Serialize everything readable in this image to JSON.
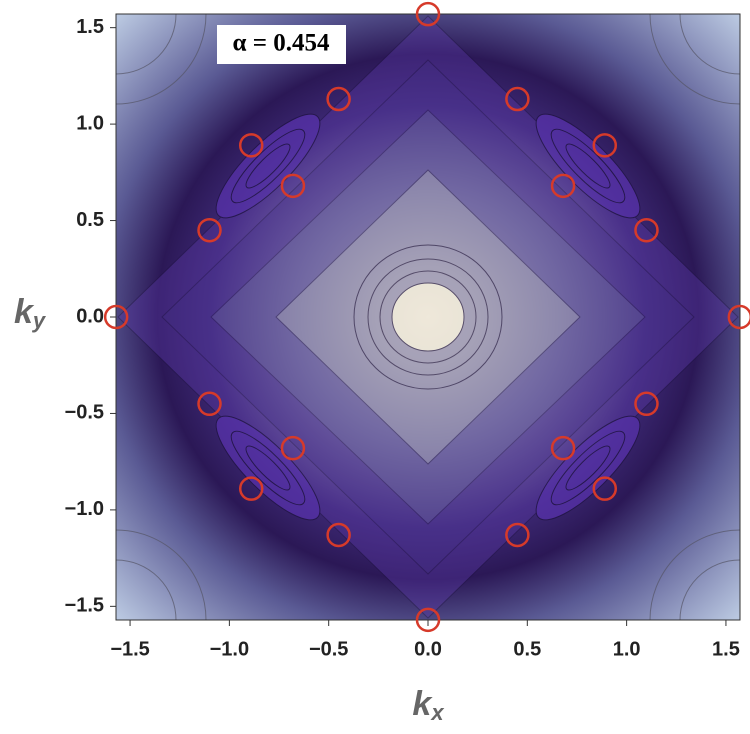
{
  "chart_data": {
    "type": "scatter",
    "annotation": "α = 0.454",
    "xlabel": "k",
    "xlabel_subscript": "x",
    "ylabel": "k",
    "ylabel_subscript": "y",
    "x": [
      0,
      -1.57,
      1.57,
      0,
      -0.45,
      0.45,
      -0.89,
      0.89,
      -0.68,
      0.68,
      -1.1,
      1.1,
      -0.45,
      0.45,
      -0.89,
      0.89,
      -0.68,
      0.68,
      -1.1,
      1.1
    ],
    "values": [
      1.57,
      0,
      0,
      -1.57,
      1.13,
      1.13,
      0.89,
      0.89,
      0.68,
      0.68,
      0.45,
      0.45,
      -1.13,
      -1.13,
      -0.89,
      -0.89,
      -0.68,
      -0.68,
      -0.45,
      -0.45
    ],
    "color": "#d63a2a",
    "xlim": [
      -1.5708,
      1.5708
    ],
    "ylim": [
      -1.5708,
      1.5708
    ],
    "xticks": [
      {
        "value": -1.5,
        "label": "−1.5"
      },
      {
        "value": -1.0,
        "label": "−1.0"
      },
      {
        "value": -0.5,
        "label": "−0.5"
      },
      {
        "value": 0,
        "label": "0.0"
      },
      0.5,
      {
        "value": 1.0,
        "label": "1.0"
      },
      1.5
    ],
    "yticks": [
      {
        "value": -1.5,
        "label": "−1.5"
      },
      {
        "value": -1.0,
        "label": "−1.0"
      },
      {
        "value": -0.5,
        "label": "−0.5"
      },
      {
        "value": 0,
        "label": "0.0"
      },
      0.5,
      {
        "value": 1.0,
        "label": "1.0"
      },
      1.5
    ]
  }
}
